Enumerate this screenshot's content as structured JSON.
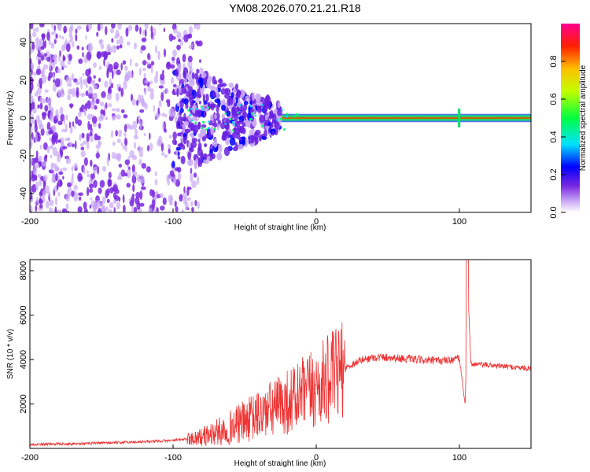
{
  "title": "YM08.2026.070.21.21.R18",
  "chart_data": [
    {
      "type": "heatmap",
      "xlabel": "Height of straight line (km)",
      "ylabel": "Frequency (Hz)",
      "xlim": [
        -200,
        150
      ],
      "ylim": [
        -50,
        50
      ],
      "x_ticks": [
        "-200",
        "-100",
        "0",
        "100"
      ],
      "x_tick_values": [
        -200,
        -100,
        0,
        100
      ],
      "y_ticks": [
        "-40",
        "-20",
        "0",
        "20",
        "40"
      ],
      "y_tick_values": [
        -40,
        -20,
        0,
        20,
        40
      ],
      "colorbar": {
        "label": "Normalized spectral amplitude",
        "range": [
          0,
          1
        ],
        "ticks": [
          "0.0",
          "0.2",
          "0.4",
          "0.6",
          "0.8"
        ],
        "tick_values": [
          0,
          0.2,
          0.4,
          0.6,
          0.8
        ]
      }
    },
    {
      "type": "line",
      "xlabel": "Height of straight line (km)",
      "ylabel": "SNR (10 * v/v)",
      "xlim": [
        -200,
        150
      ],
      "ylim": [
        0,
        8500
      ],
      "x_ticks": [
        "-200",
        "-100",
        "0",
        "100"
      ],
      "x_tick_values": [
        -200,
        -100,
        0,
        100
      ],
      "y_ticks": [
        "2000",
        "4000",
        "6000",
        "8000"
      ],
      "y_tick_values": [
        2000,
        4000,
        6000,
        8000
      ],
      "series": [
        {
          "name": "SNR",
          "color": "#ee3333",
          "x": [
            -200,
            -180,
            -160,
            -140,
            -120,
            -100,
            -90,
            -80,
            -70,
            -60,
            -50,
            -40,
            -30,
            -20,
            -10,
            0,
            10,
            20,
            30,
            40,
            50,
            60,
            70,
            80,
            90,
            100,
            104,
            106,
            108,
            110,
            120,
            130,
            140,
            150
          ],
          "values": [
            180,
            200,
            220,
            260,
            300,
            360,
            430,
            520,
            700,
            950,
            1200,
            1500,
            1800,
            2100,
            2400,
            2700,
            3200,
            3600,
            3950,
            4100,
            4100,
            4050,
            4000,
            3950,
            3950,
            4050,
            2000,
            7000,
            3800,
            3800,
            3750,
            3700,
            3650,
            3600
          ]
        }
      ]
    }
  ],
  "colors": {
    "series_line": "#ee3333",
    "heat_purple": "#7a28e0",
    "heat_light": "#c9a8f5"
  }
}
